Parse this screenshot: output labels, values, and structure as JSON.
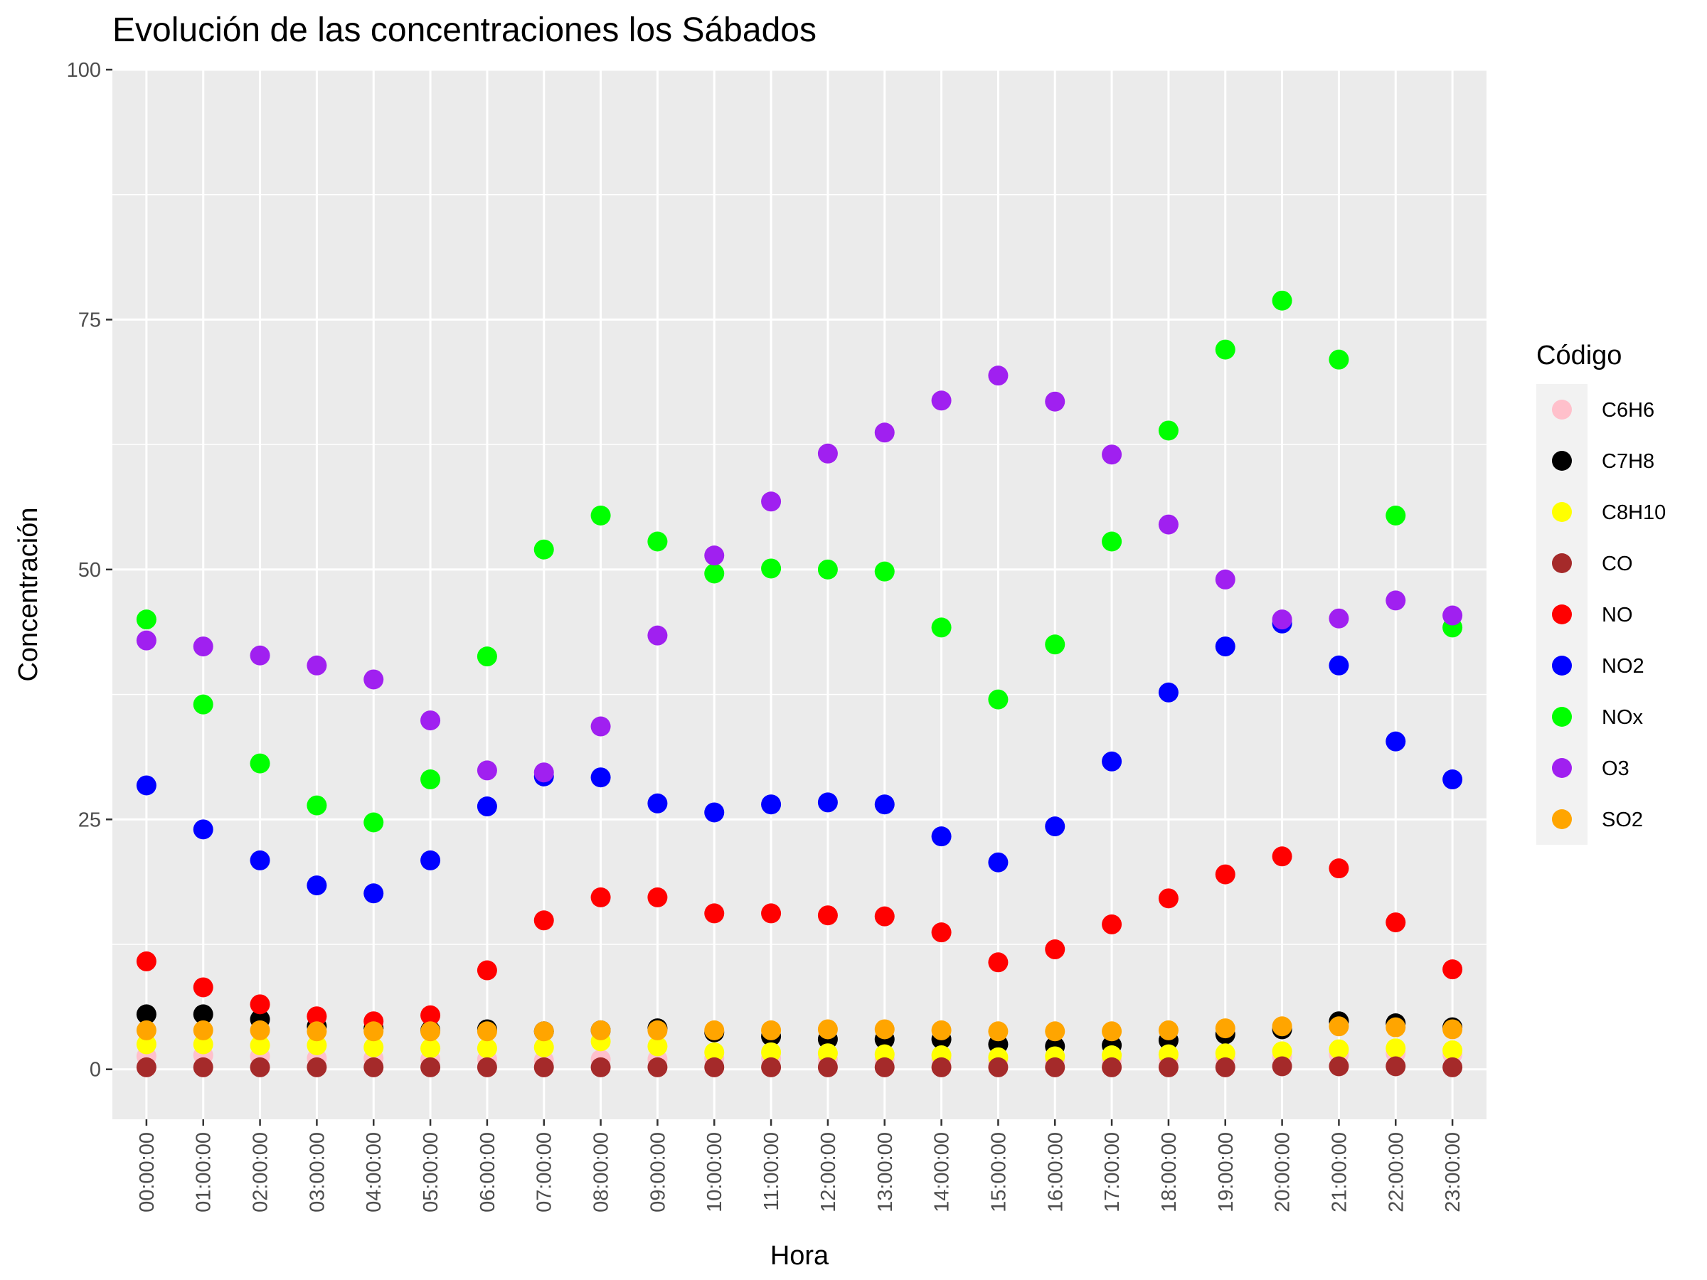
{
  "chart_data": {
    "type": "scatter",
    "title": "Evolución de las concentraciones los Sábados",
    "xlabel": "Hora",
    "ylabel": "Concentración",
    "ylim": [
      -5,
      100
    ],
    "y_ticks": [
      0,
      25,
      50,
      75,
      100
    ],
    "grid": true,
    "legend_position": "right",
    "legend_title": "Código",
    "categories": [
      "00:00:00",
      "01:00:00",
      "02:00:00",
      "03:00:00",
      "04:00:00",
      "05:00:00",
      "06:00:00",
      "07:00:00",
      "08:00:00",
      "09:00:00",
      "10:00:00",
      "11:00:00",
      "12:00:00",
      "13:00:00",
      "14:00:00",
      "15:00:00",
      "16:00:00",
      "17:00:00",
      "18:00:00",
      "19:00:00",
      "20:00:00",
      "21:00:00",
      "22:00:00",
      "23:00:00"
    ],
    "series": [
      {
        "name": "C6H6",
        "color": "#FFC0CB",
        "values": [
          1.3,
          1.4,
          1.3,
          1.1,
          1.1,
          1.0,
          1.0,
          0.9,
          1.0,
          1.0,
          1.1,
          1.1,
          1.0,
          1.0,
          1.0,
          0.9,
          0.9,
          0.9,
          1.0,
          1.1,
          1.3,
          1.5,
          1.6,
          1.5
        ]
      },
      {
        "name": "C7H8",
        "color": "#000000",
        "values": [
          5.5,
          5.5,
          5.0,
          4.3,
          4.1,
          3.9,
          4.0,
          3.8,
          3.9,
          4.1,
          3.7,
          3.3,
          3.0,
          3.0,
          3.0,
          2.5,
          2.3,
          2.4,
          2.9,
          3.5,
          4.0,
          4.8,
          4.6,
          4.2
        ]
      },
      {
        "name": "C8H10",
        "color": "#FFFF00",
        "values": [
          2.5,
          2.5,
          2.4,
          2.4,
          2.2,
          2.1,
          2.1,
          2.2,
          2.8,
          2.3,
          1.7,
          1.7,
          1.6,
          1.5,
          1.4,
          1.2,
          1.3,
          1.4,
          1.5,
          1.6,
          1.8,
          2.0,
          2.1,
          1.9
        ]
      },
      {
        "name": "CO",
        "color": "#A52A2A",
        "values": [
          0.2,
          0.2,
          0.2,
          0.2,
          0.2,
          0.2,
          0.2,
          0.2,
          0.2,
          0.2,
          0.2,
          0.2,
          0.2,
          0.2,
          0.2,
          0.2,
          0.2,
          0.2,
          0.2,
          0.2,
          0.3,
          0.3,
          0.3,
          0.2
        ]
      },
      {
        "name": "NO",
        "color": "#FF0000",
        "values": [
          10.8,
          8.2,
          6.5,
          5.3,
          4.8,
          5.4,
          9.9,
          14.9,
          17.2,
          17.2,
          15.6,
          15.6,
          15.4,
          15.3,
          13.7,
          10.7,
          12.0,
          14.5,
          17.1,
          19.5,
          21.3,
          20.1,
          14.7,
          10.0
        ]
      },
      {
        "name": "NO2",
        "color": "#0000FF",
        "values": [
          28.4,
          24.0,
          20.9,
          18.4,
          17.6,
          20.9,
          26.3,
          29.3,
          29.2,
          26.6,
          25.7,
          26.5,
          26.7,
          26.5,
          23.3,
          20.7,
          24.3,
          30.8,
          37.7,
          42.3,
          44.6,
          40.4,
          32.8,
          29.0
        ]
      },
      {
        "name": "NOx",
        "color": "#00FF00",
        "values": [
          45.0,
          36.5,
          30.6,
          26.4,
          24.7,
          29.0,
          41.3,
          52.0,
          55.4,
          52.8,
          49.6,
          50.1,
          50.0,
          49.8,
          44.2,
          37.0,
          42.5,
          52.8,
          63.9,
          72.0,
          76.9,
          71.0,
          55.4,
          44.2
        ]
      },
      {
        "name": "O3",
        "color": "#A020F0",
        "values": [
          42.9,
          42.3,
          41.4,
          40.4,
          39.0,
          34.9,
          29.9,
          29.7,
          34.3,
          43.4,
          51.4,
          56.8,
          61.6,
          63.7,
          66.9,
          69.4,
          66.8,
          61.5,
          54.5,
          49.0,
          45.0,
          45.1,
          46.9,
          45.4
        ]
      },
      {
        "name": "SO2",
        "color": "#FFA500",
        "values": [
          3.9,
          3.9,
          3.9,
          3.8,
          3.8,
          3.8,
          3.8,
          3.8,
          3.9,
          3.9,
          3.9,
          3.9,
          4.0,
          4.0,
          3.9,
          3.8,
          3.8,
          3.8,
          3.9,
          4.1,
          4.3,
          4.3,
          4.2,
          4.0
        ]
      }
    ]
  }
}
